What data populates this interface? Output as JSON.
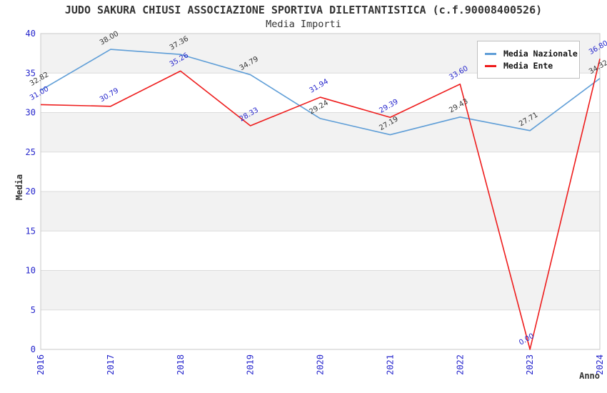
{
  "title": "JUDO SAKURA CHIUSI ASSOCIAZIONE SPORTIVA DILETTANTISTICA (c.f.90008400526)",
  "subtitle": "Media Importi",
  "chart_data": {
    "type": "line",
    "x": [
      2016,
      2017,
      2018,
      2019,
      2020,
      2021,
      2022,
      2023,
      2024
    ],
    "series": [
      {
        "name": "Media Nazionale",
        "color": "#5f9ed7",
        "label_color": "#333333",
        "values": [
          32.82,
          38.0,
          37.36,
          34.79,
          29.24,
          27.19,
          29.43,
          27.71,
          34.32
        ]
      },
      {
        "name": "Media Ente",
        "color": "#ee1c1c",
        "label_color": "#2424cc",
        "values": [
          31.0,
          30.79,
          35.26,
          28.33,
          31.94,
          29.39,
          33.6,
          0.0,
          36.8
        ]
      }
    ],
    "xlabel": "Anno",
    "ylabel": "Media",
    "ylim": [
      0,
      40
    ],
    "ytick_step": 5,
    "yticks": [
      0,
      5,
      10,
      15,
      20,
      25,
      30,
      35,
      40
    ],
    "grid": "horizontal-bands",
    "legend_position": "top-right",
    "band_color": "#f2f2f2",
    "gridline_color": "#dcdcdc",
    "plot_border_color": "#c9c9c9",
    "tick_label_color": "#2424cc"
  }
}
